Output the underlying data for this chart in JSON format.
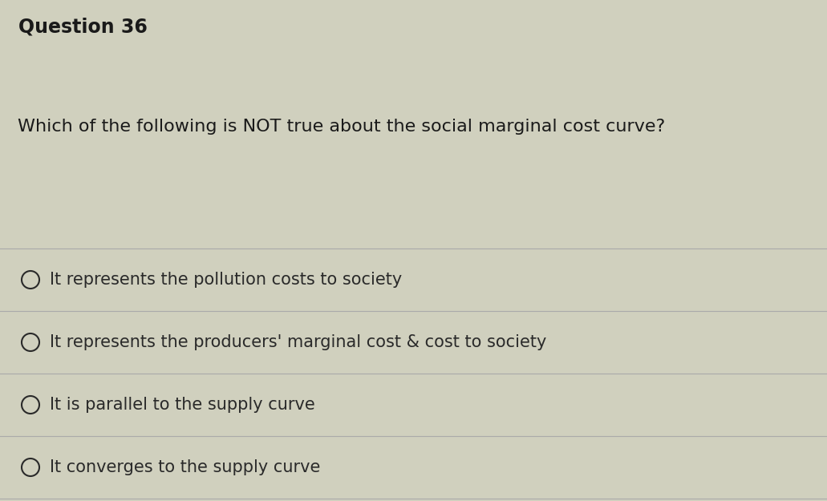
{
  "question_number": "Question 36",
  "question_text": "Which of the following is NOT true about the social marginal cost curve?",
  "options": [
    "It represents the pollution costs to society",
    "It represents the producers' marginal cost & cost to society",
    "It is parallel to the supply curve",
    "It converges to the supply curve"
  ],
  "header_bg_color": "#9e9e7a",
  "body_bg_color": "#d0d0be",
  "header_text_color": "#1a1a1a",
  "question_text_color": "#1a1a1a",
  "option_text_color": "#2a2a2a",
  "divider_color": "#aaaaaa",
  "header_font_size": 17,
  "question_font_size": 16,
  "option_font_size": 15,
  "fig_width": 10.31,
  "fig_height": 6.25,
  "dpi": 100
}
